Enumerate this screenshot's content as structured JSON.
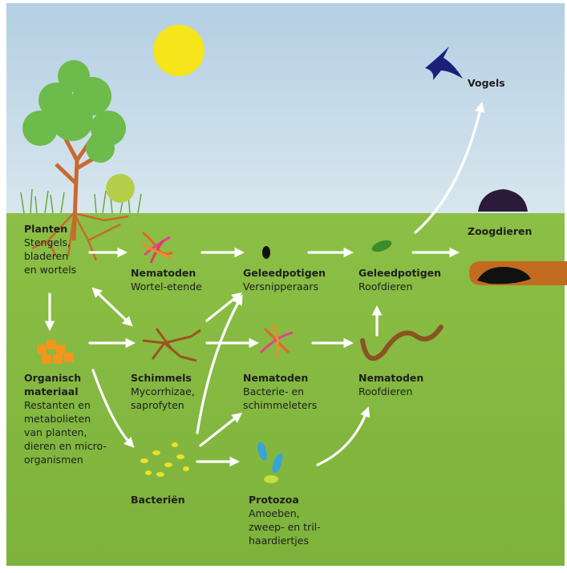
{
  "nodes": [
    {
      "title": [
        "Planten"
      ],
      "text": [
        "Stengels,",
        "bladeren",
        "en wortels"
      ]
    },
    {
      "title": [
        "Nematoden"
      ],
      "text": [
        "Wortel-etende"
      ]
    },
    {
      "title": [
        "Geleedpotigen"
      ],
      "text": [
        "Versnipperaars"
      ]
    },
    {
      "title": [
        "Geleedpotigen"
      ],
      "text": [
        "Roofdieren"
      ]
    },
    {
      "title": [
        "Organisch",
        "materiaal"
      ],
      "text": [
        "Restanten en",
        "metabolieten",
        "van planten,",
        "dieren en micro-",
        "organismen"
      ]
    },
    {
      "title": [
        "Schimmels"
      ],
      "text": [
        "Mycorrhizae,",
        "saprofyten"
      ]
    },
    {
      "title": [
        "Nematoden"
      ],
      "text": [
        "Bacterie- en",
        "schimmeleters"
      ]
    },
    {
      "title": [
        "Nematoden"
      ],
      "text": [
        "Roofdieren"
      ]
    },
    {
      "title": [
        "Bacteriën"
      ],
      "text": []
    },
    {
      "title": [
        "Protozoa"
      ],
      "text": [
        "Amoeben,",
        "zweep- en tril-",
        "haardiertjes"
      ]
    },
    {
      "title": [
        "Vogels"
      ],
      "text": []
    },
    {
      "title": [
        "Zoogdieren"
      ],
      "text": []
    }
  ]
}
